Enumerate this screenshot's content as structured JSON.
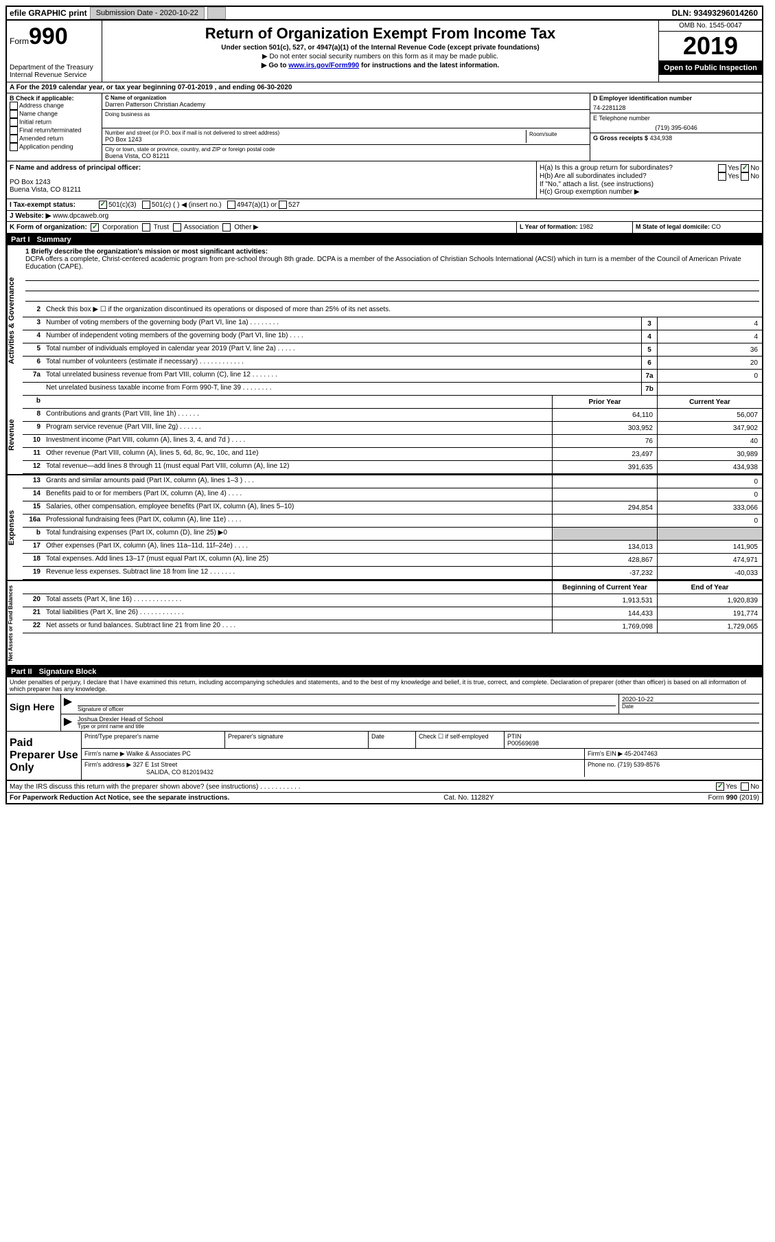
{
  "topbar": {
    "efile": "efile GRAPHIC print",
    "submission": "Submission Date - 2020-10-22",
    "dln": "DLN: 93493296014260"
  },
  "header": {
    "form_label": "Form",
    "form_num": "990",
    "dept": "Department of the Treasury",
    "irs": "Internal Revenue Service",
    "title": "Return of Organization Exempt From Income Tax",
    "subtitle": "Under section 501(c), 527, or 4947(a)(1) of the Internal Revenue Code (except private foundations)",
    "warn1": "▶ Do not enter social security numbers on this form as it may be made public.",
    "warn2_pre": "▶ Go to ",
    "warn2_link": "www.irs.gov/Form990",
    "warn2_post": " for instructions and the latest information.",
    "omb": "OMB No. 1545-0047",
    "year": "2019",
    "open": "Open to Public Inspection"
  },
  "row_a": "A For the 2019 calendar year, or tax year beginning 07-01-2019    , and ending 06-30-2020",
  "section_b": {
    "label": "B Check if applicable:",
    "items": [
      "Address change",
      "Name change",
      "Initial return",
      "Final return/terminated",
      "Amended return",
      "Application pending"
    ]
  },
  "section_c": {
    "name_label": "C Name of organization",
    "name": "Darren Patterson Christian Academy",
    "dba_label": "Doing business as",
    "addr_label": "Number and street (or P.O. box if mail is not delivered to street address)",
    "room_label": "Room/suite",
    "addr": "PO Box 1243",
    "city_label": "City or town, state or province, country, and ZIP or foreign postal code",
    "city": "Buena Vista, CO  81211"
  },
  "section_d": {
    "ein_label": "D Employer identification number",
    "ein": "74-2281128",
    "tel_label": "E Telephone number",
    "tel": "(719) 395-6046",
    "gross_label": "G Gross receipts $",
    "gross": "434,938"
  },
  "section_f": {
    "label": "F  Name and address of principal officer:",
    "addr1": "PO Box 1243",
    "addr2": "Buena Vista, CO  81211"
  },
  "section_h": {
    "ha": "H(a)  Is this a group return for subordinates?",
    "hb": "H(b)  Are all subordinates included?",
    "hb_note": "If \"No,\" attach a list. (see instructions)",
    "hc": "H(c)  Group exemption number ▶",
    "yes": "Yes",
    "no": "No"
  },
  "row_i": {
    "label": "I    Tax-exempt status:",
    "opts": [
      "501(c)(3)",
      "501(c) (  ) ◀ (insert no.)",
      "4947(a)(1) or",
      "527"
    ]
  },
  "row_j": {
    "label": "J   Website: ▶",
    "value": "www.dpcaweb.org"
  },
  "row_k": {
    "label": "K Form of organization:",
    "opts": [
      "Corporation",
      "Trust",
      "Association",
      "Other ▶"
    ]
  },
  "row_l": {
    "label": "L Year of formation:",
    "value": "1982"
  },
  "row_m": {
    "label": "M State of legal domicile:",
    "value": "CO"
  },
  "part1": {
    "num": "Part I",
    "title": "Summary"
  },
  "mission": {
    "label": "1   Briefly describe the organization's mission or most significant activities:",
    "text": "DCPA offers a complete, Christ-centered academic program from pre-school through 8th grade. DCPA is a member of the Association of Christian Schools International (ACSI) which in turn is a member of the Council of American Private Education (CAPE)."
  },
  "line2": "Check this box ▶ ☐ if the organization discontinued its operations or disposed of more than 25% of its net assets.",
  "governance": [
    {
      "n": "3",
      "d": "Number of voting members of the governing body (Part VI, line 1a)   .   .   .   .   .   .   .   .",
      "b": "3",
      "v": "4"
    },
    {
      "n": "4",
      "d": "Number of independent voting members of the governing body (Part VI, line 1b)   .   .   .   .",
      "b": "4",
      "v": "4"
    },
    {
      "n": "5",
      "d": "Total number of individuals employed in calendar year 2019 (Part V, line 2a)   .   .   .   .   .",
      "b": "5",
      "v": "36"
    },
    {
      "n": "6",
      "d": "Total number of volunteers (estimate if necessary)    .   .   .   .   .   .   .   .   .   .   .   .",
      "b": "6",
      "v": "20"
    },
    {
      "n": "7a",
      "d": "Total unrelated business revenue from Part VIII, column (C), line 12   .   .   .   .   .   .   .",
      "b": "7a",
      "v": "0"
    },
    {
      "n": "",
      "d": "Net unrelated business taxable income from Form 990-T, line 39    .   .   .   .   .   .   .   .",
      "b": "7b",
      "v": ""
    }
  ],
  "col_headers": {
    "b": "b",
    "prior": "Prior Year",
    "current": "Current Year"
  },
  "revenue": [
    {
      "n": "8",
      "d": "Contributions and grants (Part VIII, line 1h)   .   .   .   .   .   .",
      "p": "64,110",
      "c": "56,007"
    },
    {
      "n": "9",
      "d": "Program service revenue (Part VIII, line 2g)   .   .   .   .   .   .",
      "p": "303,952",
      "c": "347,902"
    },
    {
      "n": "10",
      "d": "Investment income (Part VIII, column (A), lines 3, 4, and 7d )   .   .   .   .",
      "p": "76",
      "c": "40"
    },
    {
      "n": "11",
      "d": "Other revenue (Part VIII, column (A), lines 5, 6d, 8c, 9c, 10c, and 11e)",
      "p": "23,497",
      "c": "30,989"
    },
    {
      "n": "12",
      "d": "Total revenue—add lines 8 through 11 (must equal Part VIII, column (A), line 12)",
      "p": "391,635",
      "c": "434,938"
    }
  ],
  "expenses": [
    {
      "n": "13",
      "d": "Grants and similar amounts paid (Part IX, column (A), lines 1–3 )   .   .   .",
      "p": "",
      "c": "0"
    },
    {
      "n": "14",
      "d": "Benefits paid to or for members (Part IX, column (A), line 4)   .   .   .   .",
      "p": "",
      "c": "0"
    },
    {
      "n": "15",
      "d": "Salaries, other compensation, employee benefits (Part IX, column (A), lines 5–10)",
      "p": "294,854",
      "c": "333,066"
    },
    {
      "n": "16a",
      "d": "Professional fundraising fees (Part IX, column (A), line 11e)   .   .   .   .",
      "p": "",
      "c": "0"
    },
    {
      "n": "b",
      "d": "Total fundraising expenses (Part IX, column (D), line 25) ▶0",
      "p": "SHADE",
      "c": "SHADE"
    },
    {
      "n": "17",
      "d": "Other expenses (Part IX, column (A), lines 11a–11d, 11f–24e)   .   .   .   .",
      "p": "134,013",
      "c": "141,905"
    },
    {
      "n": "18",
      "d": "Total expenses. Add lines 13–17 (must equal Part IX, column (A), line 25)",
      "p": "428,867",
      "c": "474,971"
    },
    {
      "n": "19",
      "d": "Revenue less expenses. Subtract line 18 from line 12  .   .   .   .   .   .   .",
      "p": "-37,232",
      "c": "-40,033"
    }
  ],
  "net_headers": {
    "begin": "Beginning of Current Year",
    "end": "End of Year"
  },
  "netassets": [
    {
      "n": "20",
      "d": "Total assets (Part X, line 16)  .   .   .   .   .   .   .   .   .   .   .   .   .",
      "p": "1,913,531",
      "c": "1,920,839"
    },
    {
      "n": "21",
      "d": "Total liabilities (Part X, line 26)  .   .   .   .   .   .   .   .   .   .   .   .",
      "p": "144,433",
      "c": "191,774"
    },
    {
      "n": "22",
      "d": "Net assets or fund balances. Subtract line 21 from line 20   .   .   .   .",
      "p": "1,769,098",
      "c": "1,729,065"
    }
  ],
  "part2": {
    "num": "Part II",
    "title": "Signature Block"
  },
  "perjury": "Under penalties of perjury, I declare that I have examined this return, including accompanying schedules and statements, and to the best of my knowledge and belief, it is true, correct, and complete. Declaration of preparer (other than officer) is based on all information of which preparer has any knowledge.",
  "sign": {
    "label": "Sign Here",
    "sig_label": "Signature of officer",
    "date_label": "Date",
    "date": "2020-10-22",
    "name": "Joshua Drexler  Head of School",
    "name_label": "Type or print name and title"
  },
  "paid": {
    "label": "Paid Preparer Use Only",
    "print_label": "Print/Type preparer's name",
    "sig_label": "Preparer's signature",
    "date_label": "Date",
    "check_label": "Check ☐ if self-employed",
    "ptin_label": "PTIN",
    "ptin": "P00569698",
    "firm_name_label": "Firm's name    ▶",
    "firm_name": "Walke & Associates PC",
    "firm_ein_label": "Firm's EIN ▶",
    "firm_ein": "45-2047463",
    "firm_addr_label": "Firm's address ▶",
    "firm_addr1": "327 E 1st Street",
    "firm_addr2": "SALIDA, CO  812019432",
    "phone_label": "Phone no.",
    "phone": "(719) 539-8576"
  },
  "discuss": "May the IRS discuss this return with the preparer shown above? (see instructions)   .   .   .   .   .   .   .   .   .   .   .",
  "footer": {
    "pra": "For Paperwork Reduction Act Notice, see the separate instructions.",
    "cat": "Cat. No. 11282Y",
    "form": "Form 990 (2019)"
  },
  "side_labels": {
    "gov": "Activities & Governance",
    "rev": "Revenue",
    "exp": "Expenses",
    "net": "Net Assets or Fund Balances"
  }
}
